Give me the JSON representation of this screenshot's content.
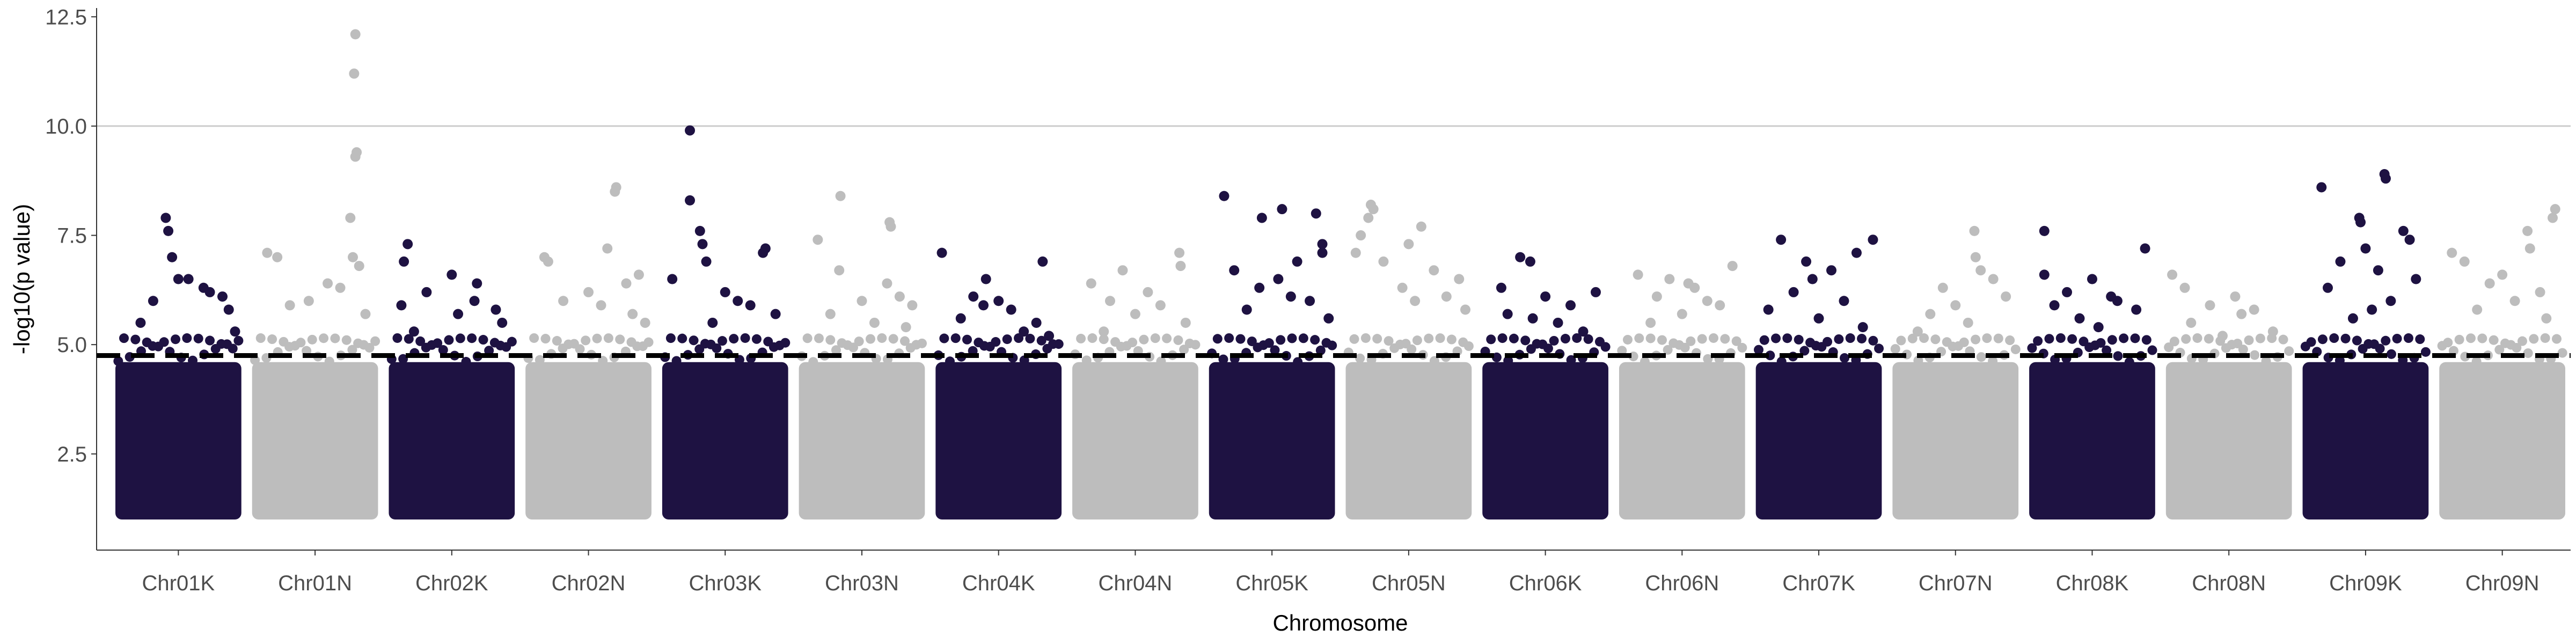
{
  "chart_data": {
    "type": "scatter",
    "subtype": "manhattan",
    "xlabel": "Chromosome",
    "ylabel": "-log10(p value)",
    "ylim": [
      0.3,
      12.7
    ],
    "yticks": [
      2.5,
      5.0,
      7.5,
      10.0,
      12.5
    ],
    "ytick_labels": [
      "2.5",
      "5.0",
      "7.5",
      "10.0",
      "12.5"
    ],
    "grid": "horizontal at 10.0",
    "threshold": 4.75,
    "threshold_style": "dashed black",
    "colors": {
      "dark": "#1e1242",
      "light": "#bdbdbd"
    },
    "categories": [
      "Chr01K",
      "Chr01N",
      "Chr02K",
      "Chr02N",
      "Chr03K",
      "Chr03N",
      "Chr04K",
      "Chr04N",
      "Chr05K",
      "Chr05N",
      "Chr06K",
      "Chr06N",
      "Chr07K",
      "Chr07N",
      "Chr08K",
      "Chr08N",
      "Chr09K",
      "Chr09N"
    ],
    "base_range": [
      1.0,
      4.6
    ],
    "top_points": [
      [
        [
          7.9,
          0.4
        ],
        [
          7.6,
          0.42
        ],
        [
          7.0,
          0.45
        ],
        [
          6.5,
          0.5
        ],
        [
          6.5,
          0.58
        ],
        [
          6.3,
          0.7
        ],
        [
          6.2,
          0.75
        ],
        [
          6.1,
          0.85
        ],
        [
          6.0,
          0.3
        ],
        [
          5.8,
          0.9
        ],
        [
          5.5,
          0.2
        ],
        [
          5.3,
          0.95
        ]
      ],
      [
        [
          12.1,
          0.82
        ],
        [
          11.2,
          0.81
        ],
        [
          9.4,
          0.83
        ],
        [
          9.3,
          0.82
        ],
        [
          7.9,
          0.78
        ],
        [
          7.1,
          0.12
        ],
        [
          7.0,
          0.2
        ],
        [
          7.0,
          0.8
        ],
        [
          6.8,
          0.85
        ],
        [
          6.4,
          0.6
        ],
        [
          6.3,
          0.7
        ],
        [
          6.0,
          0.45
        ],
        [
          5.9,
          0.3
        ],
        [
          5.7,
          0.9
        ]
      ],
      [
        [
          7.3,
          0.15
        ],
        [
          6.9,
          0.12
        ],
        [
          6.6,
          0.5
        ],
        [
          6.4,
          0.7
        ],
        [
          6.2,
          0.3
        ],
        [
          6.0,
          0.68
        ],
        [
          5.9,
          0.1
        ],
        [
          5.8,
          0.85
        ],
        [
          5.7,
          0.55
        ],
        [
          5.5,
          0.9
        ],
        [
          5.3,
          0.2
        ]
      ],
      [
        [
          8.6,
          0.72
        ],
        [
          8.5,
          0.71
        ],
        [
          7.2,
          0.65
        ],
        [
          7.0,
          0.15
        ],
        [
          6.9,
          0.18
        ],
        [
          6.6,
          0.9
        ],
        [
          6.4,
          0.8
        ],
        [
          6.2,
          0.5
        ],
        [
          6.0,
          0.3
        ],
        [
          5.9,
          0.6
        ],
        [
          5.7,
          0.85
        ],
        [
          5.5,
          0.95
        ]
      ],
      [
        [
          9.9,
          0.22
        ],
        [
          8.3,
          0.22
        ],
        [
          7.6,
          0.3
        ],
        [
          7.3,
          0.32
        ],
        [
          7.2,
          0.82
        ],
        [
          7.1,
          0.8
        ],
        [
          6.9,
          0.35
        ],
        [
          6.5,
          0.08
        ],
        [
          6.2,
          0.5
        ],
        [
          6.0,
          0.6
        ],
        [
          5.9,
          0.7
        ],
        [
          5.7,
          0.9
        ],
        [
          5.5,
          0.4
        ]
      ],
      [
        [
          8.4,
          0.33
        ],
        [
          7.8,
          0.72
        ],
        [
          7.7,
          0.73
        ],
        [
          7.4,
          0.15
        ],
        [
          6.7,
          0.32
        ],
        [
          6.4,
          0.7
        ],
        [
          6.1,
          0.8
        ],
        [
          6.0,
          0.5
        ],
        [
          5.9,
          0.9
        ],
        [
          5.7,
          0.25
        ],
        [
          5.5,
          0.6
        ],
        [
          5.4,
          0.85
        ]
      ],
      [
        [
          7.1,
          0.05
        ],
        [
          6.9,
          0.85
        ],
        [
          6.5,
          0.4
        ],
        [
          6.1,
          0.3
        ],
        [
          6.0,
          0.5
        ],
        [
          5.9,
          0.38
        ],
        [
          5.8,
          0.6
        ],
        [
          5.6,
          0.2
        ],
        [
          5.5,
          0.8
        ],
        [
          5.3,
          0.7
        ],
        [
          5.2,
          0.9
        ]
      ],
      [
        [
          7.1,
          0.85
        ],
        [
          6.8,
          0.86
        ],
        [
          6.7,
          0.4
        ],
        [
          6.4,
          0.15
        ],
        [
          6.2,
          0.6
        ],
        [
          6.0,
          0.3
        ],
        [
          5.9,
          0.7
        ],
        [
          5.7,
          0.5
        ],
        [
          5.5,
          0.9
        ],
        [
          5.3,
          0.25
        ]
      ],
      [
        [
          8.4,
          0.12
        ],
        [
          8.1,
          0.58
        ],
        [
          8.0,
          0.85
        ],
        [
          7.9,
          0.42
        ],
        [
          7.3,
          0.9
        ],
        [
          7.1,
          0.9
        ],
        [
          6.9,
          0.7
        ],
        [
          6.7,
          0.2
        ],
        [
          6.5,
          0.55
        ],
        [
          6.3,
          0.4
        ],
        [
          6.1,
          0.65
        ],
        [
          6.0,
          0.8
        ],
        [
          5.8,
          0.3
        ],
        [
          5.6,
          0.95
        ]
      ],
      [
        [
          8.2,
          0.2
        ],
        [
          8.1,
          0.22
        ],
        [
          7.9,
          0.18
        ],
        [
          7.7,
          0.6
        ],
        [
          7.5,
          0.12
        ],
        [
          7.3,
          0.5
        ],
        [
          7.1,
          0.08
        ],
        [
          6.9,
          0.3
        ],
        [
          6.7,
          0.7
        ],
        [
          6.5,
          0.9
        ],
        [
          6.3,
          0.45
        ],
        [
          6.1,
          0.8
        ],
        [
          6.0,
          0.55
        ],
        [
          5.8,
          0.95
        ]
      ],
      [
        [
          7.0,
          0.3
        ],
        [
          6.9,
          0.38
        ],
        [
          6.3,
          0.15
        ],
        [
          6.2,
          0.9
        ],
        [
          6.1,
          0.5
        ],
        [
          5.9,
          0.7
        ],
        [
          5.7,
          0.2
        ],
        [
          5.6,
          0.4
        ],
        [
          5.5,
          0.6
        ],
        [
          5.3,
          0.8
        ]
      ],
      [
        [
          6.8,
          0.9
        ],
        [
          6.6,
          0.15
        ],
        [
          6.5,
          0.4
        ],
        [
          6.4,
          0.55
        ],
        [
          6.3,
          0.6
        ],
        [
          6.1,
          0.3
        ],
        [
          6.0,
          0.7
        ],
        [
          5.9,
          0.8
        ],
        [
          5.7,
          0.5
        ],
        [
          5.5,
          0.25
        ]
      ],
      [
        [
          7.4,
          0.2
        ],
        [
          7.4,
          0.93
        ],
        [
          7.1,
          0.8
        ],
        [
          6.9,
          0.4
        ],
        [
          6.7,
          0.6
        ],
        [
          6.5,
          0.45
        ],
        [
          6.2,
          0.3
        ],
        [
          6.0,
          0.7
        ],
        [
          5.8,
          0.1
        ],
        [
          5.6,
          0.5
        ],
        [
          5.4,
          0.85
        ]
      ],
      [
        [
          7.6,
          0.65
        ],
        [
          7.0,
          0.66
        ],
        [
          6.7,
          0.7
        ],
        [
          6.5,
          0.8
        ],
        [
          6.3,
          0.4
        ],
        [
          6.1,
          0.9
        ],
        [
          5.9,
          0.5
        ],
        [
          5.7,
          0.3
        ],
        [
          5.5,
          0.6
        ],
        [
          5.3,
          0.2
        ]
      ],
      [
        [
          7.6,
          0.12
        ],
        [
          7.2,
          0.92
        ],
        [
          6.6,
          0.12
        ],
        [
          6.5,
          0.5
        ],
        [
          6.2,
          0.3
        ],
        [
          6.1,
          0.65
        ],
        [
          6.0,
          0.7
        ],
        [
          5.9,
          0.2
        ],
        [
          5.8,
          0.85
        ],
        [
          5.6,
          0.4
        ],
        [
          5.4,
          0.55
        ]
      ],
      [
        [
          6.6,
          0.05
        ],
        [
          6.3,
          0.15
        ],
        [
          6.1,
          0.55
        ],
        [
          5.9,
          0.35
        ],
        [
          5.8,
          0.7
        ],
        [
          5.7,
          0.6
        ],
        [
          5.5,
          0.2
        ],
        [
          5.3,
          0.85
        ],
        [
          5.2,
          0.45
        ]
      ],
      [
        [
          8.9,
          0.65
        ],
        [
          8.8,
          0.66
        ],
        [
          8.6,
          0.15
        ],
        [
          7.9,
          0.45
        ],
        [
          7.8,
          0.46
        ],
        [
          7.6,
          0.8
        ],
        [
          7.4,
          0.85
        ],
        [
          7.2,
          0.5
        ],
        [
          6.9,
          0.3
        ],
        [
          6.7,
          0.6
        ],
        [
          6.5,
          0.9
        ],
        [
          6.3,
          0.2
        ],
        [
          6.0,
          0.7
        ],
        [
          5.8,
          0.55
        ],
        [
          5.6,
          0.4
        ]
      ],
      [
        [
          8.1,
          0.92
        ],
        [
          7.9,
          0.9
        ],
        [
          7.6,
          0.7
        ],
        [
          7.2,
          0.72
        ],
        [
          7.1,
          0.1
        ],
        [
          6.9,
          0.2
        ],
        [
          6.6,
          0.5
        ],
        [
          6.4,
          0.4
        ],
        [
          6.2,
          0.8
        ],
        [
          6.0,
          0.6
        ],
        [
          5.8,
          0.3
        ],
        [
          5.6,
          0.85
        ]
      ]
    ]
  }
}
